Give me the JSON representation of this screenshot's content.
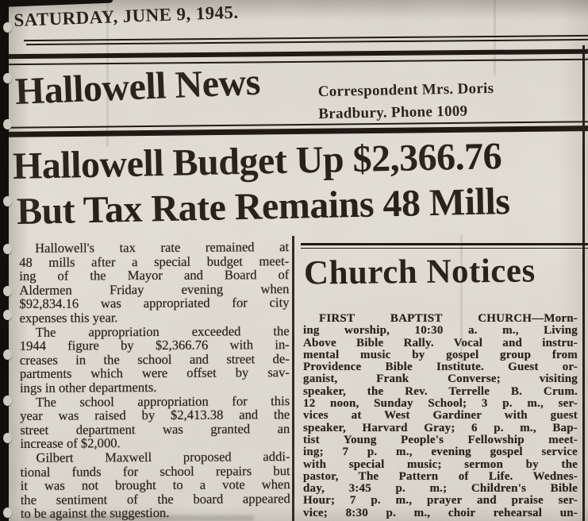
{
  "colors": {
    "paper": "#dad6cd",
    "ink": "#1d1812"
  },
  "date_line": "SATURDAY, JUNE 9, 1945.",
  "masthead": {
    "title": "Hallowell News",
    "correspondent_line1": "Correspondent Mrs. Doris",
    "correspondent_line2": "Bradbury. Phone 1009"
  },
  "headline": {
    "line1": "Hallowell Budget Up $2,366.76",
    "line2": "But Tax Rate Remains 48 Mills"
  },
  "article": {
    "paragraphs": [
      [
        "Hallowell's tax rate remained at",
        "48 mills after a special budget meet-",
        "ing of the Mayor and Board of",
        "Aldermen Friday evening when",
        "$92,834.16 was appropriated for city",
        "expenses this year."
      ],
      [
        "The appropriation exceeded the",
        "1944 figure by $2,366.76 with in-",
        "creases in the school and street de-",
        "partments which were offset by sav-",
        "ings in other departments."
      ],
      [
        "The school appropriation for this",
        "year was raised by $2,413.38 and the",
        "street department was granted an",
        "increase of $2,000."
      ],
      [
        "Gilbert Maxwell proposed addi-",
        "tional funds for school repairs but",
        "it was not brought to a vote when",
        "the sentiment of the board appeared",
        "to be against the suggestion."
      ]
    ]
  },
  "church": {
    "title": "Church Notices",
    "lines": [
      "FIRST BAPTIST CHURCH—Morn-",
      "ing worship, 10:30 a. m., Living",
      "Above Bible Rally. Vocal and instru-",
      "mental music by gospel group from",
      "Providence Bible Institute. Guest or-",
      "ganist, Frank Converse; visiting",
      "speaker, the Rev. Terrelle B. Crum.",
      "12 noon, Sunday School; 3 p. m., ser-",
      "vices at West Gardiner with guest",
      "speaker, Harvard Gray; 6 p. m., Bap-",
      "tist Young People's Fellowship meet-",
      "ing; 7 p. m., evening gospel service",
      "with special music; sermon by the",
      "pastor, The Pattern of Life. Wednes-",
      "day, 3:45 p. m.; Children's Bible",
      "Hour; 7 p. m., prayer and praise ser-",
      "vice; 8:30 p. m., choir rehearsal un-"
    ]
  }
}
